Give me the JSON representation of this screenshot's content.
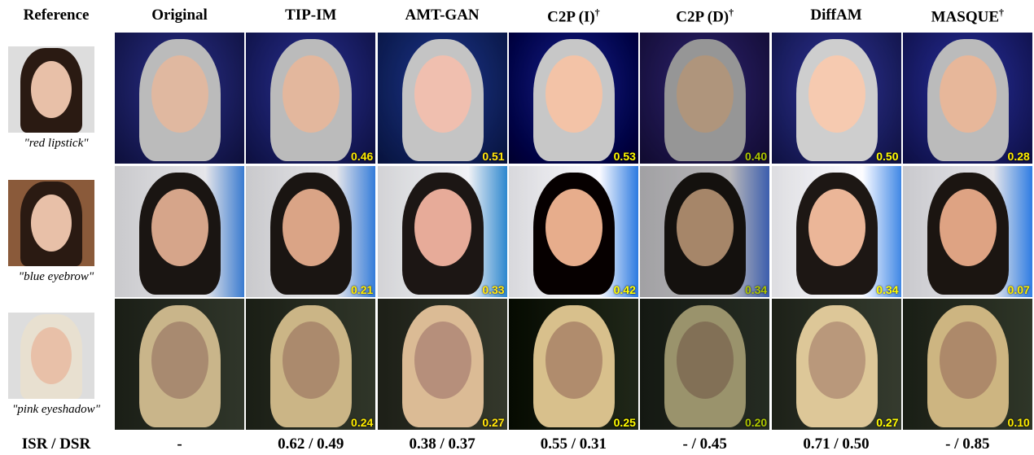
{
  "header": {
    "reference": "Reference",
    "columns": [
      {
        "label": "Original"
      },
      {
        "label": "TIP-IM"
      },
      {
        "label": "AMT-GAN"
      },
      {
        "label": "C2P (I)",
        "note": "†"
      },
      {
        "label": "C2P (D)",
        "note": "†"
      },
      {
        "label": "DiffAM"
      },
      {
        "label": "MASQUE",
        "note": "†"
      }
    ]
  },
  "rows": [
    {
      "caption": "\"red lipstick\"",
      "scores": [
        "0.46",
        "0.51",
        "0.53",
        "0.40",
        "0.50",
        "0.28"
      ]
    },
    {
      "caption": "\"blue eyebrow\"",
      "scores": [
        "0.21",
        "0.33",
        "0.42",
        "0.34",
        "0.34",
        "0.07"
      ]
    },
    {
      "caption": "\"pink eyeshadow\"",
      "scores": [
        "0.24",
        "0.27",
        "0.25",
        "0.20",
        "0.27",
        "0.10"
      ]
    }
  ],
  "footer": {
    "label": "ISR / DSR",
    "values": [
      "-",
      "0.62 / 0.49",
      "0.38 / 0.37",
      "0.55 / 0.31",
      "- / 0.45",
      "0.71 / 0.50",
      "- / 0.85"
    ]
  }
}
